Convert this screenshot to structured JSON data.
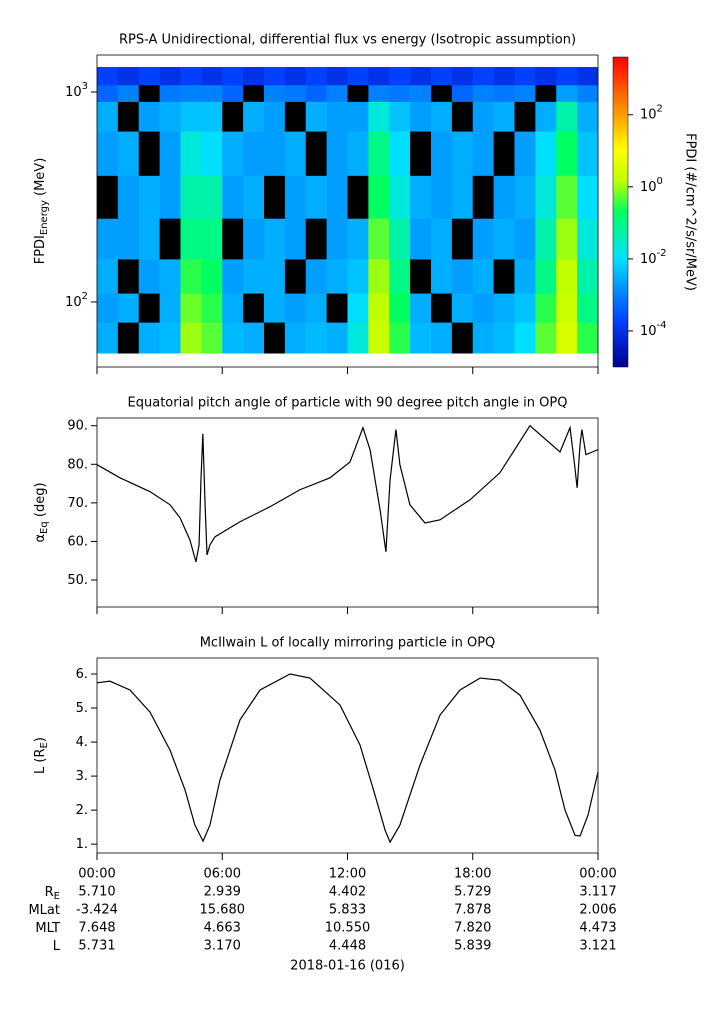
{
  "chart_data": [
    {
      "type": "heatmap",
      "title": "RPS-A Unidirectional, differential flux vs energy (Isotropic assumption)",
      "ylabel": "FPDI",
      "ylabel_sub": "Energy",
      "ylabel_unit": " (MeV)",
      "log_y": true,
      "xlim": [
        0,
        24
      ],
      "xticks": [
        0,
        6,
        12,
        18,
        24
      ],
      "ylim": [
        49,
        1500
      ],
      "yticks": [
        {
          "value": 100,
          "label": "10",
          "exponent": "2"
        },
        {
          "value": 1000,
          "label": "10",
          "exponent": "3"
        }
      ],
      "xbins": [
        0,
        1,
        2,
        3,
        4,
        5,
        6,
        7,
        8,
        9,
        10,
        11,
        12,
        13,
        14,
        15,
        16,
        17,
        18,
        19,
        20,
        21,
        22,
        23,
        24
      ],
      "ybins": [
        57,
        80,
        110,
        160,
        250,
        400,
        650,
        900,
        1080,
        1315
      ],
      "z": [
        [
          0.003,
          0,
          0.003,
          0.004,
          1,
          0.5,
          0.004,
          0.003,
          0,
          0.003,
          0.004,
          0.003,
          0.02,
          2,
          0.3,
          0.004,
          0.003,
          0,
          0.003,
          0.004,
          0.01,
          0.5,
          3,
          0.3
        ],
        [
          0.002,
          0.003,
          0,
          0.003,
          0.6,
          0.3,
          0.003,
          0,
          0.003,
          0.002,
          0.003,
          0,
          0.01,
          1.5,
          0.2,
          0.003,
          0,
          0.003,
          0.002,
          0.003,
          0.005,
          0.3,
          2,
          0.1
        ],
        [
          0.003,
          0,
          0.002,
          0.003,
          0.3,
          0.2,
          0.002,
          0.003,
          0.003,
          0,
          0.002,
          0.003,
          0.005,
          1,
          0.1,
          0,
          0.003,
          0.002,
          0.003,
          0,
          0.003,
          0.1,
          1.5,
          0.05
        ],
        [
          0.002,
          0.002,
          0.003,
          0,
          0.1,
          0.1,
          0,
          0.002,
          0.003,
          0.002,
          0,
          0.002,
          0.003,
          0.5,
          0.05,
          0.002,
          0.003,
          0,
          0.002,
          0.003,
          0.002,
          0.05,
          1,
          0.02
        ],
        [
          0,
          0.002,
          0.003,
          0.002,
          0.05,
          0.05,
          0.002,
          0.003,
          0,
          0.002,
          0.003,
          0.002,
          0,
          0.2,
          0.02,
          0.003,
          0.002,
          0.003,
          0,
          0.002,
          0.003,
          0.02,
          0.5,
          0.01
        ],
        [
          0.002,
          0.003,
          0,
          0.002,
          0.02,
          0.01,
          0.003,
          0.002,
          0.002,
          0.003,
          0,
          0.002,
          0.003,
          0.1,
          0.01,
          0,
          0.002,
          0.003,
          0.002,
          0,
          0.002,
          0.01,
          0.2,
          0.005
        ],
        [
          0.003,
          0,
          0.002,
          0.003,
          0.005,
          0.005,
          0,
          0.003,
          0.002,
          0,
          0.003,
          0.002,
          0.002,
          0.02,
          0.005,
          0.002,
          0.003,
          0,
          0.002,
          0.003,
          0,
          0.003,
          0.05,
          0.003
        ],
        [
          0.0005,
          0.001,
          0,
          0.0008,
          0.001,
          0.001,
          0.0005,
          0,
          0.001,
          0.0008,
          0.0005,
          0.001,
          0,
          0.001,
          0.0008,
          0.001,
          0,
          0.0005,
          0.001,
          0.0008,
          0.001,
          0,
          0.002,
          0.001
        ],
        [
          0.0002,
          0.0001,
          0.0002,
          0.0001,
          0.0002,
          0.0001,
          0.0002,
          0.0001,
          0.0002,
          0.0001,
          0.0002,
          0.0001,
          0.0002,
          0.0001,
          0.0002,
          0.0001,
          0.0002,
          0.0001,
          0.0002,
          0.0001,
          0.0002,
          0.0001,
          0.0002,
          0.0001
        ]
      ],
      "colorbar": {
        "label": "FPDI (#/cm^2/s/sr/MeV)",
        "colormap": "rainbow",
        "zlim": [
          1e-05,
          4000
        ],
        "ticks": [
          {
            "value": 0.0001,
            "label": "10",
            "exponent": "-4"
          },
          {
            "value": 0.01,
            "label": "10",
            "exponent": "-2"
          },
          {
            "value": 1,
            "label": "10",
            "exponent": "0"
          },
          {
            "value": 100,
            "label": "10",
            "exponent": "2"
          }
        ]
      }
    },
    {
      "type": "line",
      "title": "Equatorial pitch angle of particle with 90 degree pitch angle in OPQ",
      "ylabel": "α",
      "ylabel_sub": "Eq",
      "ylabel_unit": " (deg)",
      "xlim": [
        0,
        24
      ],
      "xticks": [
        0,
        6,
        12,
        18,
        24
      ],
      "ylim": [
        43,
        92
      ],
      "yticks": [
        {
          "value": 50,
          "label": "50."
        },
        {
          "value": 60,
          "label": "60."
        },
        {
          "value": 70,
          "label": "70."
        },
        {
          "value": 80,
          "label": "80."
        },
        {
          "value": 90,
          "label": "90."
        }
      ],
      "x": [
        0,
        1.1,
        2.54,
        3.5,
        3.98,
        4.45,
        4.74,
        4.89,
        4.98,
        5.07,
        5.17,
        5.27,
        5.41,
        5.65,
        6.85,
        8.29,
        9.72,
        11.16,
        12.12,
        12.74,
        13.08,
        13.56,
        13.84,
        14.04,
        14.32,
        14.51,
        14.99,
        15.71,
        16.43,
        17.87,
        19.3,
        20.74,
        22.18,
        22.66,
        22.85,
        23.0,
        23.14,
        23.23,
        23.42,
        24
      ],
      "series": [
        {
          "color": "#000000",
          "values": [
            79.9,
            76.5,
            72.9,
            69.5,
            66.1,
            60.4,
            54.7,
            59.1,
            76,
            87.9,
            70.8,
            56.5,
            59.1,
            61.2,
            65.1,
            69,
            73.4,
            76.5,
            80.6,
            89.5,
            83.8,
            68.2,
            57.3,
            76,
            89,
            79.9,
            69.5,
            64.8,
            65.6,
            70.8,
            77.8,
            90,
            83.2,
            89.5,
            81.2,
            73.9,
            85.1,
            89,
            82.5,
            83.8
          ]
        }
      ]
    },
    {
      "type": "line",
      "title": "McIlwain L of locally mirroring particle in OPQ",
      "ylabel": "L (R",
      "ylabel_sub": "E",
      "ylabel_unit": ")",
      "xlim": [
        0,
        24
      ],
      "xticks": [
        {
          "value": 0,
          "label": "00:00"
        },
        {
          "value": 6,
          "label": "06:00"
        },
        {
          "value": 12,
          "label": "12:00"
        },
        {
          "value": 18,
          "label": "18:00"
        },
        {
          "value": 24,
          "label": "00:00"
        }
      ],
      "ylim": [
        0.74,
        6.47
      ],
      "yticks": [
        {
          "value": 1,
          "label": "1."
        },
        {
          "value": 2,
          "label": "2."
        },
        {
          "value": 3,
          "label": "3."
        },
        {
          "value": 4,
          "label": "4."
        },
        {
          "value": 5,
          "label": "5."
        },
        {
          "value": 6,
          "label": "6."
        }
      ],
      "x": [
        0,
        0.62,
        1.58,
        2.54,
        3.5,
        4.22,
        4.69,
        5.08,
        5.41,
        5.89,
        6.85,
        7.81,
        9.25,
        10.2,
        11.64,
        12.6,
        13.32,
        13.8,
        14.04,
        14.51,
        15.47,
        16.43,
        17.39,
        18.35,
        19.3,
        20.26,
        21.22,
        21.94,
        22.42,
        22.9,
        23.14,
        23.52,
        24
      ],
      "series": [
        {
          "color": "#000000",
          "values": [
            5.74,
            5.79,
            5.53,
            4.88,
            3.76,
            2.59,
            1.56,
            1.09,
            1.56,
            2.88,
            4.65,
            5.53,
            6.0,
            5.88,
            5.09,
            3.91,
            2.44,
            1.41,
            1.06,
            1.56,
            3.32,
            4.79,
            5.53,
            5.88,
            5.82,
            5.38,
            4.35,
            3.18,
            2.0,
            1.26,
            1.24,
            1.85,
            3.12
          ]
        }
      ]
    }
  ],
  "ephemeris": {
    "rows": [
      {
        "label": "R",
        "label_sub": "E",
        "values": [
          "5.710",
          "2.939",
          "4.402",
          "5.729",
          "3.117"
        ]
      },
      {
        "label": "MLat",
        "values": [
          "-3.424",
          "15.680",
          "5.833",
          "7.878",
          "2.006"
        ]
      },
      {
        "label": "MLT",
        "values": [
          "7.648",
          "4.663",
          "10.550",
          "7.820",
          "4.473"
        ]
      },
      {
        "label": "L",
        "values": [
          "5.731",
          "3.170",
          "4.448",
          "5.839",
          "3.121"
        ]
      }
    ],
    "date": "2018-01-16 (016)"
  }
}
